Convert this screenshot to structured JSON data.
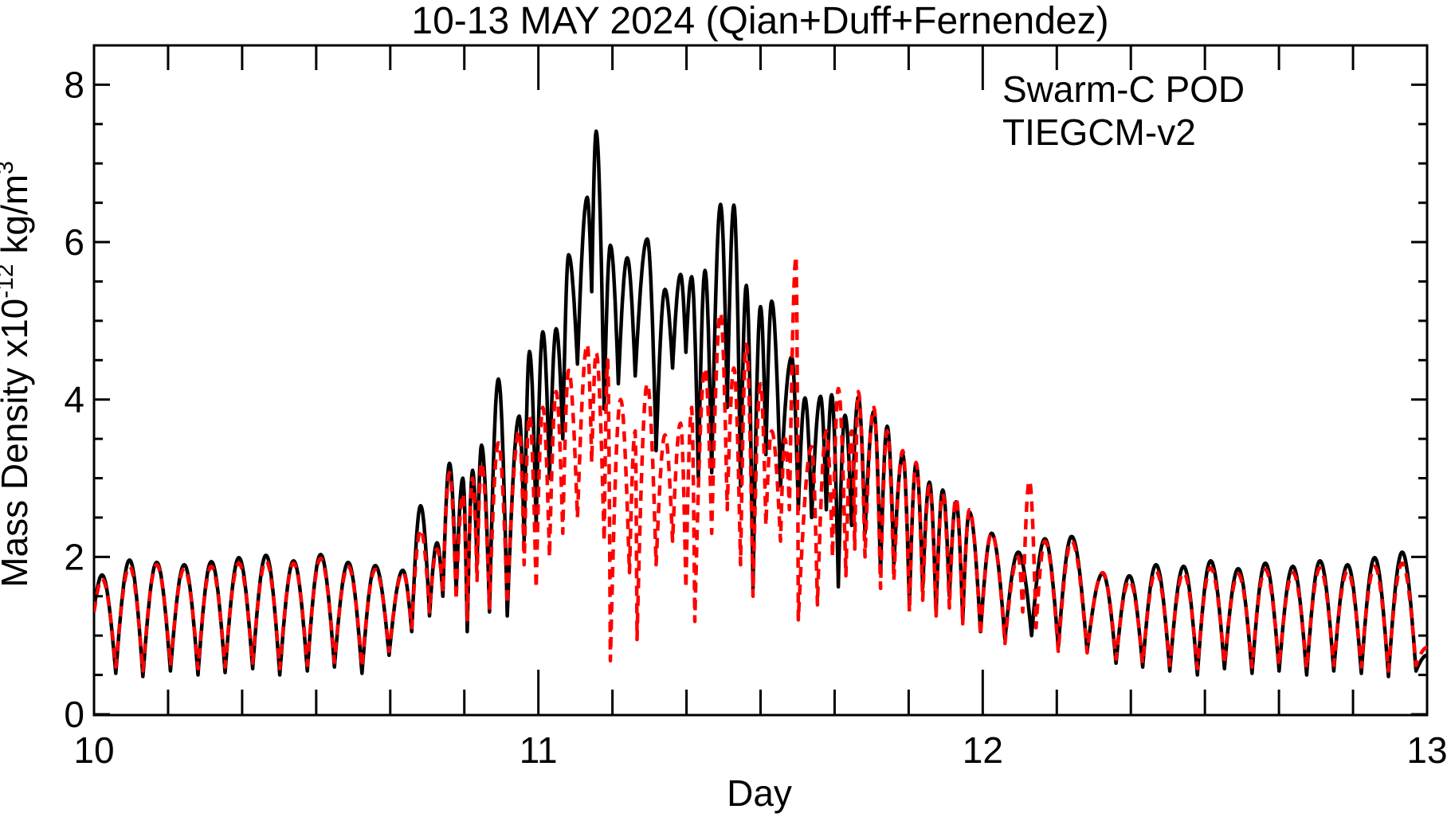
{
  "title": "10-13 MAY 2024 (Qian+Duff+Fernendez)",
  "legend": {
    "items": [
      {
        "label": "Swarm-C POD",
        "color": "#000000",
        "line_style": "solid"
      },
      {
        "label": "TIEGCM-v2",
        "color": "#ff0000",
        "line_style": "dashed"
      }
    ]
  },
  "axes": {
    "x": {
      "label": "Day",
      "min": 10,
      "max": 13,
      "major_ticks": [
        10,
        11,
        12,
        13
      ],
      "major_tick_labels": [
        "10",
        "11",
        "12",
        "13"
      ],
      "minor_ticks_per_day": 6
    },
    "y": {
      "label": "Mass Density x10^-12 kg/m^3",
      "label_parts": [
        {
          "t": "Mass Density x10",
          "sup": false
        },
        {
          "t": "-12",
          "sup": true
        },
        {
          "t": " kg/m",
          "sup": false
        },
        {
          "t": "3",
          "sup": true
        }
      ],
      "min": 0,
      "max": 8.5,
      "major_ticks": [
        0,
        2,
        4,
        6,
        8
      ],
      "major_tick_labels": [
        "0",
        "2",
        "4",
        "6",
        "8"
      ],
      "minor_tick_step": 0.5
    }
  },
  "chart_data": {
    "type": "line",
    "title": "10-13 MAY 2024 (Qian+Duff+Fernendez)",
    "xlabel": "Day",
    "ylabel": "Mass Density x10^-12 kg/m^3",
    "xlim": [
      10,
      13
    ],
    "ylim": [
      0,
      8.5
    ],
    "grid": false,
    "legend_position": "top-right-inside",
    "note": "points are [day, density] local extrema (orbit-by-orbit peaks and troughs) read from the plot; both curves oscillate at the Swarm-C orbital period (~0.062 day). Quiet-time oscillation ~0.5-2.0, geomagnetic storm enhancement days 10.75-12.1 with Swarm-C POD maximum ~7.4 at day 11.13; TIEGCM-v2 underestimates storm peaks (~4-5) with deep dips (~0.7) and a spike to ~5.8 at day 11.58 and ~3.0 at day 12.1.",
    "series": [
      {
        "name": "Swarm-C POD",
        "color": "#000000",
        "line_style": "solid",
        "points": [
          [
            10.0,
            1.35
          ],
          [
            10.018,
            1.77
          ],
          [
            10.049,
            0.52
          ],
          [
            10.08,
            1.96
          ],
          [
            10.11,
            0.48
          ],
          [
            10.141,
            1.93
          ],
          [
            10.172,
            0.55
          ],
          [
            10.203,
            1.9
          ],
          [
            10.234,
            0.5
          ],
          [
            10.264,
            1.94
          ],
          [
            10.295,
            0.53
          ],
          [
            10.326,
            1.99
          ],
          [
            10.357,
            0.58
          ],
          [
            10.387,
            2.02
          ],
          [
            10.418,
            0.5
          ],
          [
            10.449,
            1.95
          ],
          [
            10.48,
            0.55
          ],
          [
            10.51,
            2.03
          ],
          [
            10.541,
            0.6
          ],
          [
            10.572,
            1.93
          ],
          [
            10.603,
            0.52
          ],
          [
            10.633,
            1.89
          ],
          [
            10.664,
            0.75
          ],
          [
            10.695,
            1.83
          ],
          [
            10.715,
            1.05
          ],
          [
            10.735,
            2.65
          ],
          [
            10.755,
            1.25
          ],
          [
            10.772,
            2.18
          ],
          [
            10.785,
            1.5
          ],
          [
            10.8,
            3.19
          ],
          [
            10.815,
            1.55
          ],
          [
            10.83,
            3.0
          ],
          [
            10.84,
            1.05
          ],
          [
            10.852,
            3.1
          ],
          [
            10.862,
            1.9
          ],
          [
            10.872,
            3.42
          ],
          [
            10.89,
            1.3
          ],
          [
            10.91,
            4.26
          ],
          [
            10.93,
            1.25
          ],
          [
            10.957,
            3.79
          ],
          [
            10.968,
            2.2
          ],
          [
            10.98,
            4.61
          ],
          [
            10.995,
            2.4
          ],
          [
            11.01,
            4.86
          ],
          [
            11.025,
            3.0
          ],
          [
            11.04,
            4.9
          ],
          [
            11.055,
            3.5
          ],
          [
            11.068,
            5.84
          ],
          [
            11.088,
            4.45
          ],
          [
            11.11,
            6.57
          ],
          [
            11.12,
            5.37
          ],
          [
            11.13,
            7.41
          ],
          [
            11.148,
            3.88
          ],
          [
            11.162,
            5.96
          ],
          [
            11.18,
            4.2
          ],
          [
            11.2,
            5.8
          ],
          [
            11.218,
            4.3
          ],
          [
            11.245,
            6.04
          ],
          [
            11.265,
            3.35
          ],
          [
            11.285,
            5.4
          ],
          [
            11.302,
            4.4
          ],
          [
            11.32,
            5.59
          ],
          [
            11.332,
            4.6
          ],
          [
            11.345,
            5.56
          ],
          [
            11.36,
            3.0
          ],
          [
            11.375,
            5.64
          ],
          [
            11.39,
            3.07
          ],
          [
            11.41,
            6.48
          ],
          [
            11.425,
            3.9
          ],
          [
            11.44,
            6.47
          ],
          [
            11.455,
            2.9
          ],
          [
            11.468,
            5.45
          ],
          [
            11.483,
            1.59
          ],
          [
            11.5,
            5.18
          ],
          [
            11.512,
            3.3
          ],
          [
            11.525,
            5.25
          ],
          [
            11.545,
            2.9
          ],
          [
            11.57,
            4.54
          ],
          [
            11.585,
            2.6
          ],
          [
            11.6,
            4.02
          ],
          [
            11.615,
            2.5
          ],
          [
            11.635,
            4.04
          ],
          [
            11.648,
            2.6
          ],
          [
            11.66,
            4.06
          ],
          [
            11.675,
            1.62
          ],
          [
            11.69,
            3.8
          ],
          [
            11.705,
            2.4
          ],
          [
            11.72,
            4.03
          ],
          [
            11.735,
            2.3
          ],
          [
            11.755,
            3.85
          ],
          [
            11.77,
            1.8
          ],
          [
            11.785,
            3.66
          ],
          [
            11.8,
            1.9
          ],
          [
            11.82,
            3.3
          ],
          [
            11.835,
            1.4
          ],
          [
            11.85,
            3.18
          ],
          [
            11.865,
            1.6
          ],
          [
            11.88,
            2.95
          ],
          [
            11.895,
            1.3
          ],
          [
            11.91,
            2.85
          ],
          [
            11.925,
            1.5
          ],
          [
            11.94,
            2.7
          ],
          [
            11.955,
            1.2
          ],
          [
            11.97,
            2.57
          ],
          [
            11.995,
            1.05
          ],
          [
            12.02,
            2.3
          ],
          [
            12.05,
            0.95
          ],
          [
            12.08,
            2.06
          ],
          [
            12.11,
            1.0
          ],
          [
            12.14,
            2.23
          ],
          [
            12.17,
            0.85
          ],
          [
            12.2,
            2.26
          ],
          [
            12.235,
            0.8
          ],
          [
            12.27,
            1.79
          ],
          [
            12.3,
            0.65
          ],
          [
            12.33,
            1.76
          ],
          [
            12.36,
            0.6
          ],
          [
            12.39,
            1.9
          ],
          [
            12.421,
            0.55
          ],
          [
            12.452,
            1.88
          ],
          [
            12.483,
            0.5
          ],
          [
            12.513,
            1.95
          ],
          [
            12.544,
            0.58
          ],
          [
            12.575,
            1.85
          ],
          [
            12.606,
            0.52
          ],
          [
            12.636,
            1.92
          ],
          [
            12.667,
            0.55
          ],
          [
            12.698,
            1.88
          ],
          [
            12.729,
            0.5
          ],
          [
            12.759,
            1.95
          ],
          [
            12.79,
            0.55
          ],
          [
            12.821,
            1.9
          ],
          [
            12.852,
            0.52
          ],
          [
            12.882,
            1.99
          ],
          [
            12.913,
            0.48
          ],
          [
            12.944,
            2.06
          ],
          [
            12.975,
            0.55
          ],
          [
            13.0,
            0.75
          ]
        ]
      },
      {
        "name": "TIEGCM-v2",
        "color": "#ff0000",
        "line_style": "dashed",
        "points": [
          [
            10.0,
            1.3
          ],
          [
            10.018,
            1.72
          ],
          [
            10.049,
            0.6
          ],
          [
            10.08,
            1.88
          ],
          [
            10.11,
            0.55
          ],
          [
            10.141,
            1.9
          ],
          [
            10.172,
            0.62
          ],
          [
            10.203,
            1.85
          ],
          [
            10.234,
            0.58
          ],
          [
            10.264,
            1.88
          ],
          [
            10.295,
            0.6
          ],
          [
            10.326,
            1.92
          ],
          [
            10.357,
            0.65
          ],
          [
            10.387,
            1.95
          ],
          [
            10.418,
            0.58
          ],
          [
            10.449,
            1.92
          ],
          [
            10.48,
            0.62
          ],
          [
            10.51,
            1.98
          ],
          [
            10.541,
            0.66
          ],
          [
            10.572,
            1.88
          ],
          [
            10.603,
            0.6
          ],
          [
            10.633,
            1.84
          ],
          [
            10.664,
            0.8
          ],
          [
            10.695,
            1.8
          ],
          [
            10.715,
            1.1
          ],
          [
            10.735,
            2.35
          ],
          [
            10.755,
            1.3
          ],
          [
            10.772,
            2.1
          ],
          [
            10.785,
            1.55
          ],
          [
            10.8,
            3.07
          ],
          [
            10.815,
            1.45
          ],
          [
            10.83,
            2.8
          ],
          [
            10.84,
            1.2
          ],
          [
            10.852,
            3.0
          ],
          [
            10.862,
            1.7
          ],
          [
            10.872,
            3.2
          ],
          [
            10.89,
            1.35
          ],
          [
            10.91,
            3.45
          ],
          [
            10.93,
            1.4
          ],
          [
            10.957,
            3.6
          ],
          [
            10.968,
            1.9
          ],
          [
            10.98,
            3.8
          ],
          [
            10.995,
            1.6
          ],
          [
            11.01,
            3.9
          ],
          [
            11.025,
            2.0
          ],
          [
            11.04,
            4.1
          ],
          [
            11.055,
            2.3
          ],
          [
            11.068,
            4.37
          ],
          [
            11.088,
            2.5
          ],
          [
            11.11,
            4.7
          ],
          [
            11.12,
            3.2
          ],
          [
            11.13,
            4.6
          ],
          [
            11.148,
            2.2
          ],
          [
            11.156,
            4.5
          ],
          [
            11.162,
            0.68
          ],
          [
            11.185,
            4.0
          ],
          [
            11.205,
            1.8
          ],
          [
            11.218,
            3.6
          ],
          [
            11.222,
            0.95
          ],
          [
            11.245,
            4.2
          ],
          [
            11.265,
            1.9
          ],
          [
            11.285,
            3.55
          ],
          [
            11.302,
            2.2
          ],
          [
            11.32,
            3.7
          ],
          [
            11.332,
            1.6
          ],
          [
            11.345,
            3.9
          ],
          [
            11.352,
            1.18
          ],
          [
            11.375,
            4.4
          ],
          [
            11.39,
            2.3
          ],
          [
            11.41,
            5.1
          ],
          [
            11.425,
            2.6
          ],
          [
            11.44,
            4.4
          ],
          [
            11.455,
            1.9
          ],
          [
            11.468,
            4.7
          ],
          [
            11.483,
            1.5
          ],
          [
            11.5,
            4.2
          ],
          [
            11.512,
            2.4
          ],
          [
            11.525,
            3.6
          ],
          [
            11.545,
            2.2
          ],
          [
            11.555,
            3.5
          ],
          [
            11.565,
            2.6
          ],
          [
            11.58,
            5.82
          ],
          [
            11.585,
            1.2
          ],
          [
            11.615,
            3.4
          ],
          [
            11.628,
            1.39
          ],
          [
            11.648,
            3.6
          ],
          [
            11.662,
            2.0
          ],
          [
            11.675,
            4.14
          ],
          [
            11.692,
            1.76
          ],
          [
            11.705,
            3.6
          ],
          [
            11.712,
            2.1
          ],
          [
            11.72,
            4.1
          ],
          [
            11.735,
            2.0
          ],
          [
            11.755,
            3.9
          ],
          [
            11.77,
            1.6
          ],
          [
            11.785,
            3.6
          ],
          [
            11.8,
            1.7
          ],
          [
            11.82,
            3.35
          ],
          [
            11.835,
            1.3
          ],
          [
            11.85,
            3.2
          ],
          [
            11.865,
            1.45
          ],
          [
            11.88,
            2.9
          ],
          [
            11.895,
            1.25
          ],
          [
            11.91,
            2.8
          ],
          [
            11.925,
            1.35
          ],
          [
            11.94,
            2.75
          ],
          [
            11.955,
            1.15
          ],
          [
            11.97,
            2.6
          ],
          [
            11.995,
            1.0
          ],
          [
            12.02,
            2.3
          ],
          [
            12.05,
            0.9
          ],
          [
            12.08,
            2.0
          ],
          [
            12.09,
            1.3
          ],
          [
            12.105,
            2.97
          ],
          [
            12.12,
            1.1
          ],
          [
            12.14,
            2.2
          ],
          [
            12.17,
            0.8
          ],
          [
            12.2,
            2.2
          ],
          [
            12.235,
            0.78
          ],
          [
            12.27,
            1.8
          ],
          [
            12.3,
            0.7
          ],
          [
            12.33,
            1.7
          ],
          [
            12.36,
            0.65
          ],
          [
            12.39,
            1.82
          ],
          [
            12.421,
            0.62
          ],
          [
            12.452,
            1.8
          ],
          [
            12.483,
            0.58
          ],
          [
            12.513,
            1.86
          ],
          [
            12.544,
            0.64
          ],
          [
            12.575,
            1.78
          ],
          [
            12.606,
            0.6
          ],
          [
            12.636,
            1.84
          ],
          [
            12.667,
            0.62
          ],
          [
            12.698,
            1.8
          ],
          [
            12.729,
            0.58
          ],
          [
            12.759,
            1.86
          ],
          [
            12.79,
            0.62
          ],
          [
            12.821,
            1.82
          ],
          [
            12.852,
            0.6
          ],
          [
            12.882,
            1.88
          ],
          [
            12.913,
            0.55
          ],
          [
            12.944,
            1.92
          ],
          [
            12.975,
            0.62
          ],
          [
            13.0,
            0.85
          ]
        ]
      }
    ]
  }
}
